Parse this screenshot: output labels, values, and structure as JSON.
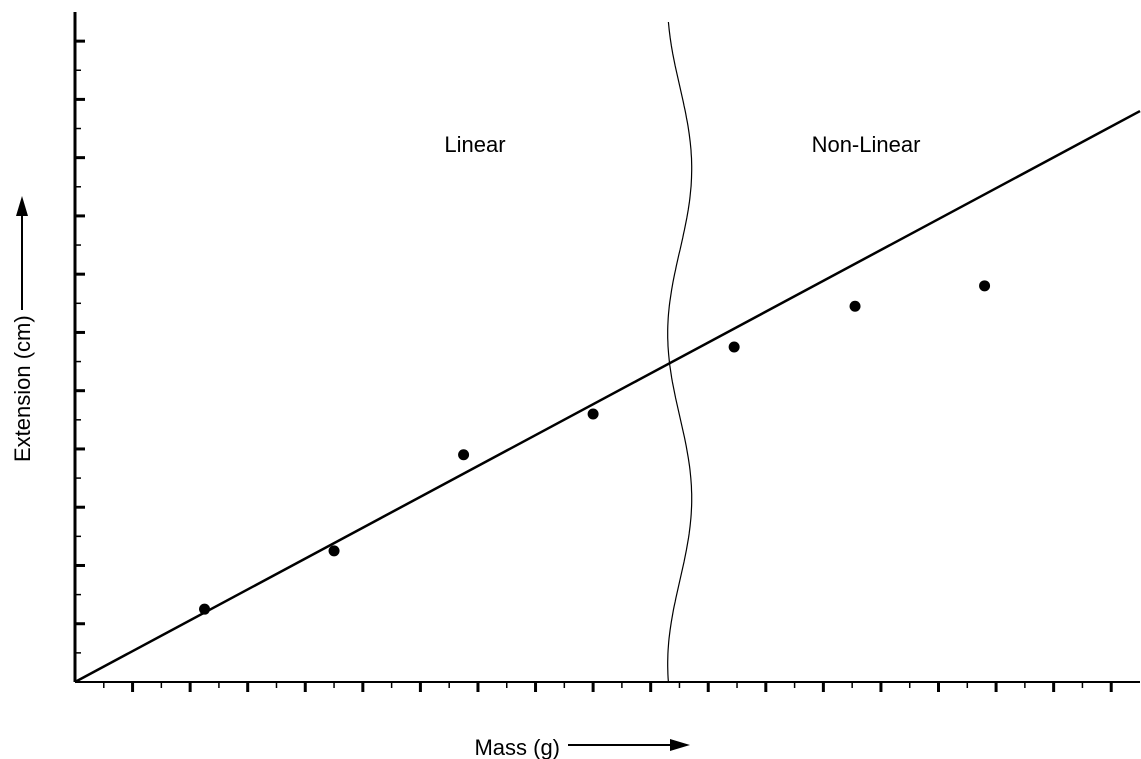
{
  "chart_data": {
    "type": "scatter",
    "title": "",
    "xlabel": "Mass (g)",
    "ylabel": "Extension (cm)",
    "xlim": [
      0,
      18.5
    ],
    "ylim": [
      0,
      11.5
    ],
    "grid": false,
    "legend": "none",
    "x_tick_labels": [],
    "y_tick_labels": [],
    "series": [
      {
        "x": [
          2.25,
          4.5,
          6.75,
          9.0,
          11.45,
          13.55,
          15.8
        ],
        "y": [
          1.25,
          2.25,
          3.9,
          4.6,
          5.75,
          6.45,
          6.8
        ]
      }
    ],
    "fit_line": {
      "x": [
        0,
        18.5
      ],
      "y": [
        0,
        9.8
      ]
    },
    "regions": [
      {
        "label": "Linear",
        "side": "left"
      },
      {
        "label": "Non-Linear",
        "side": "right"
      }
    ],
    "boundary_x": 10.4,
    "colors": {
      "axis": "#000000",
      "points": "#000000",
      "line": "#000000",
      "background": "#ffffff"
    }
  }
}
